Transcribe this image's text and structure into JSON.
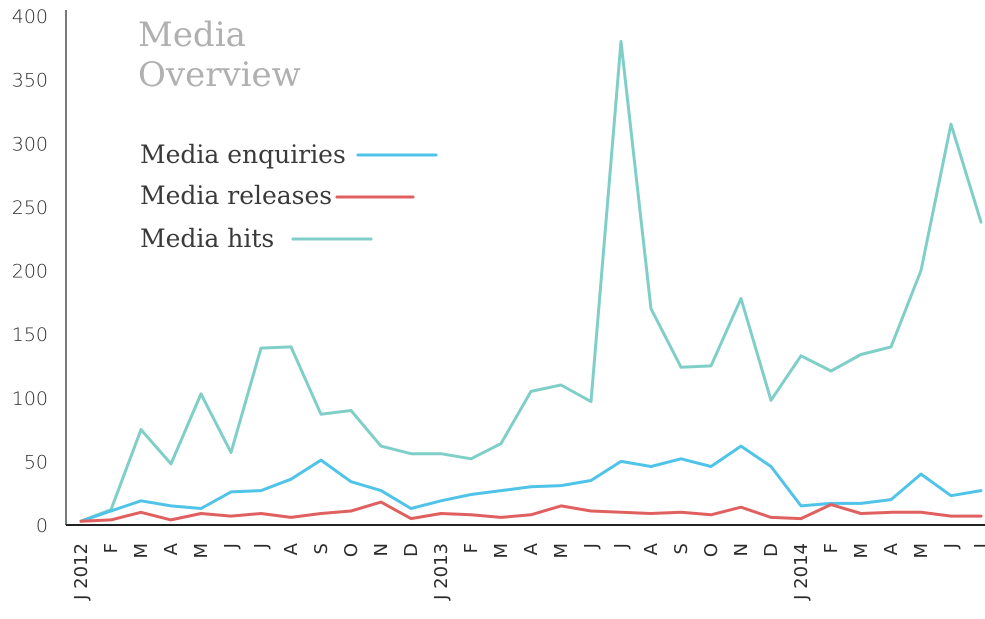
{
  "chart_data": {
    "type": "line",
    "title_lines": [
      "Media",
      "Overview"
    ],
    "xlabel": "",
    "ylabel": "",
    "ylim": [
      0,
      400
    ],
    "yticks": [
      "0",
      "50",
      "100",
      "150",
      "200",
      "250",
      "300",
      "350",
      "400"
    ],
    "categories": [
      "J 2012",
      "F",
      "M",
      "A",
      "M",
      "J",
      "J",
      "A",
      "S",
      "O",
      "N",
      "D",
      "J 2013",
      "F",
      "M",
      "A",
      "M",
      "J",
      "J",
      "A",
      "S",
      "O",
      "N",
      "D",
      "J 2014",
      "F",
      "M",
      "A",
      "M",
      "J",
      "J"
    ],
    "legend_position": "top-left",
    "series": [
      {
        "name": "Media enquiries",
        "color": "#4fc3e8",
        "values": [
          3,
          11,
          19,
          15,
          13,
          26,
          27,
          36,
          51,
          34,
          27,
          13,
          19,
          24,
          27,
          30,
          31,
          35,
          50,
          46,
          52,
          46,
          62,
          46,
          15,
          17,
          17,
          20,
          40,
          23,
          27
        ]
      },
      {
        "name": "Media releases",
        "color": "#e0605f",
        "values": [
          3,
          4,
          10,
          4,
          9,
          7,
          9,
          6,
          9,
          11,
          18,
          5,
          9,
          8,
          6,
          8,
          15,
          11,
          10,
          9,
          10,
          8,
          14,
          6,
          5,
          16,
          9,
          10,
          10,
          7,
          7
        ]
      },
      {
        "name": "Media hits",
        "color": "#7fcfc8",
        "values": [
          3,
          12,
          75,
          48,
          103,
          57,
          139,
          140,
          87,
          90,
          62,
          56,
          56,
          52,
          64,
          105,
          110,
          97,
          380,
          170,
          124,
          125,
          178,
          98,
          133,
          121,
          134,
          140,
          200,
          315,
          238
        ]
      }
    ]
  }
}
